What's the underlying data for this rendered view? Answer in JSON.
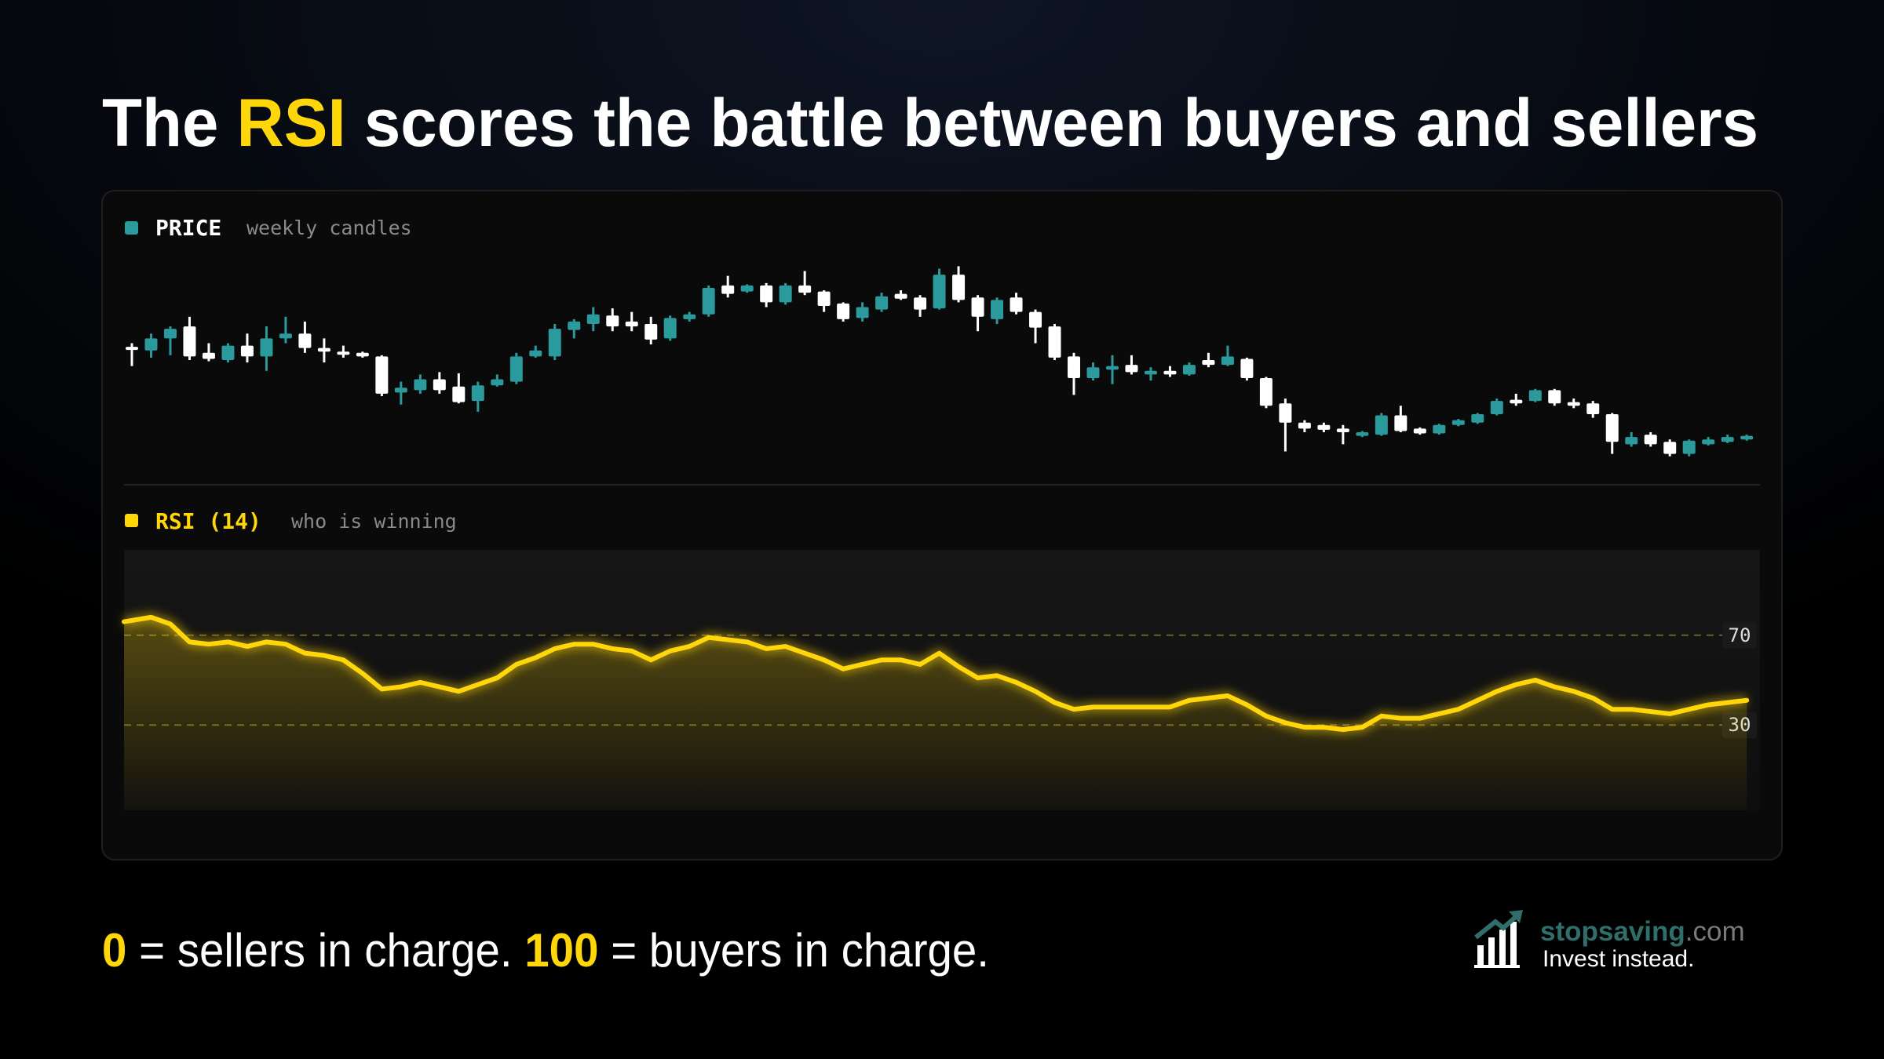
{
  "header": {
    "title_before": "The",
    "title_highlight": "RSI",
    "title_after": "scores the battle between buyers and sellers"
  },
  "chart_data": [
    {
      "type": "candlestick",
      "name": "PRICE",
      "subtitle": "weekly candles",
      "up_color": "#2a9a9c",
      "down_color": "#ffffff",
      "ylim": [
        10,
        190
      ],
      "open": [
        111,
        108,
        118,
        128,
        106,
        100,
        112,
        103,
        118,
        122,
        110,
        107,
        106,
        103,
        73,
        75,
        84,
        78,
        66,
        79,
        82,
        103,
        103,
        125,
        130,
        137,
        132,
        130,
        118,
        134,
        138,
        162,
        157,
        162,
        148,
        162,
        157,
        147,
        135,
        142,
        155,
        152,
        143,
        171,
        152,
        134,
        152,
        140,
        128,
        103,
        85,
        92,
        96,
        88,
        91,
        88,
        100,
        96,
        101,
        85,
        64,
        48,
        46,
        43,
        37,
        38,
        54,
        43,
        39,
        46,
        48,
        55,
        67,
        66,
        75,
        65,
        64,
        55,
        30,
        38,
        32,
        22,
        30,
        32,
        34
      ],
      "high": [
        114,
        122,
        128,
        136,
        114,
        114,
        122,
        128,
        136,
        132,
        118,
        112,
        107,
        104,
        82,
        88,
        90,
        89,
        82,
        88,
        106,
        112,
        130,
        134,
        144,
        143,
        140,
        136,
        137,
        140,
        162,
        170,
        163,
        164,
        164,
        174,
        158,
        148,
        148,
        156,
        158,
        154,
        176,
        178,
        154,
        152,
        156,
        142,
        130,
        106,
        98,
        104,
        104,
        94,
        95,
        98,
        106,
        112,
        102,
        86,
        68,
        50,
        48,
        46,
        41,
        56,
        62,
        44,
        47,
        51,
        56,
        68,
        72,
        76,
        76,
        68,
        66,
        56,
        40,
        40,
        34,
        34,
        36,
        38,
        38
      ],
      "low": [
        95,
        102,
        104,
        100,
        99,
        98,
        98,
        91,
        114,
        106,
        98,
        102,
        102,
        70,
        63,
        72,
        72,
        64,
        57,
        78,
        80,
        102,
        100,
        118,
        124,
        124,
        124,
        113,
        116,
        132,
        136,
        152,
        156,
        144,
        146,
        154,
        140,
        132,
        132,
        140,
        150,
        136,
        142,
        148,
        124,
        130,
        138,
        114,
        100,
        71,
        83,
        80,
        88,
        83,
        86,
        87,
        94,
        95,
        83,
        60,
        24,
        40,
        40,
        30,
        36,
        37,
        40,
        38,
        38,
        45,
        47,
        54,
        62,
        65,
        62,
        60,
        52,
        22,
        28,
        28,
        20,
        20,
        29,
        31,
        33
      ],
      "close": [
        110,
        118,
        126,
        103,
        101,
        112,
        103,
        118,
        122,
        110,
        107,
        105,
        103,
        72,
        77,
        84,
        75,
        65,
        79,
        84,
        103,
        108,
        126,
        132,
        138,
        128,
        128,
        117,
        135,
        138,
        160,
        155,
        162,
        148,
        162,
        156,
        145,
        134,
        144,
        153,
        151,
        142,
        171,
        150,
        136,
        150,
        140,
        127,
        102,
        85,
        94,
        95,
        90,
        91,
        88,
        96,
        96,
        103,
        85,
        62,
        48,
        43,
        42,
        40,
        40,
        54,
        41,
        39,
        46,
        50,
        55,
        66,
        64,
        75,
        64,
        62,
        55,
        32,
        36,
        30,
        22,
        33,
        34,
        36,
        37
      ]
    },
    {
      "type": "line",
      "name": "RSI (14)",
      "subtitle": "who is winning",
      "color": "#ffd60a",
      "ylim": [
        -8,
        108
      ],
      "yticks": [
        70,
        30
      ],
      "values": [
        76,
        78,
        75,
        67,
        66,
        67,
        65,
        67,
        66,
        62,
        61,
        59,
        53,
        46,
        47,
        49,
        47,
        45,
        48,
        51,
        57,
        60,
        64,
        66,
        66,
        64,
        63,
        59,
        63,
        65,
        69,
        68,
        67,
        64,
        65,
        62,
        59,
        55,
        57,
        59,
        59,
        57,
        62,
        56,
        51,
        52,
        49,
        45,
        40,
        37,
        38,
        38,
        38,
        38,
        38,
        41,
        42,
        43,
        39,
        34,
        31,
        29,
        29,
        28,
        29,
        34,
        33,
        33,
        35,
        37,
        41,
        45,
        48,
        50,
        47,
        45,
        42,
        37,
        37,
        36,
        35,
        37,
        39,
        40,
        41
      ]
    }
  ],
  "footer": {
    "n0": "0",
    "t0": "= sellers in charge.",
    "n1": "100",
    "t1": "= buyers in charge."
  },
  "brand": {
    "name": "stopsaving",
    "tld": ".com",
    "tagline": "Invest instead."
  }
}
